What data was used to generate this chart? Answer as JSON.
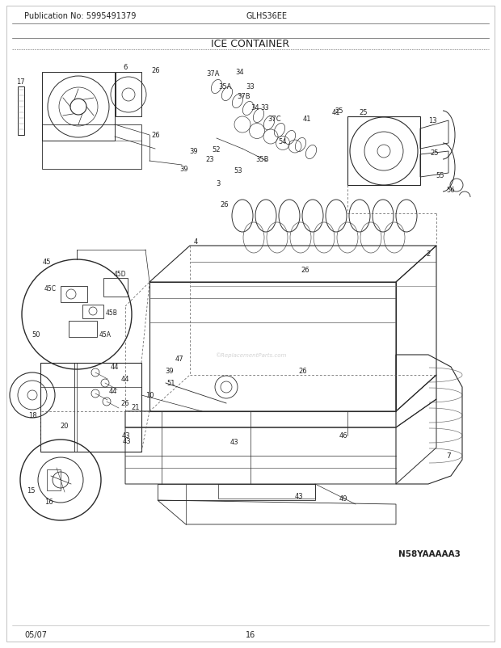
{
  "title": "ICE CONTAINER",
  "pub_no": "Publication No: 5995491379",
  "model": "GLHS36EE",
  "diagram_id": "N58YAAAAA3",
  "date": "05/07",
  "page": "16",
  "bg_color": "#ffffff",
  "text_color": "#222222",
  "title_fontsize": 8.5,
  "header_fontsize": 7,
  "footer_fontsize": 7,
  "label_fontsize": 6.2,
  "line_color": "#2a2a2a",
  "dashed_color": "#555555"
}
